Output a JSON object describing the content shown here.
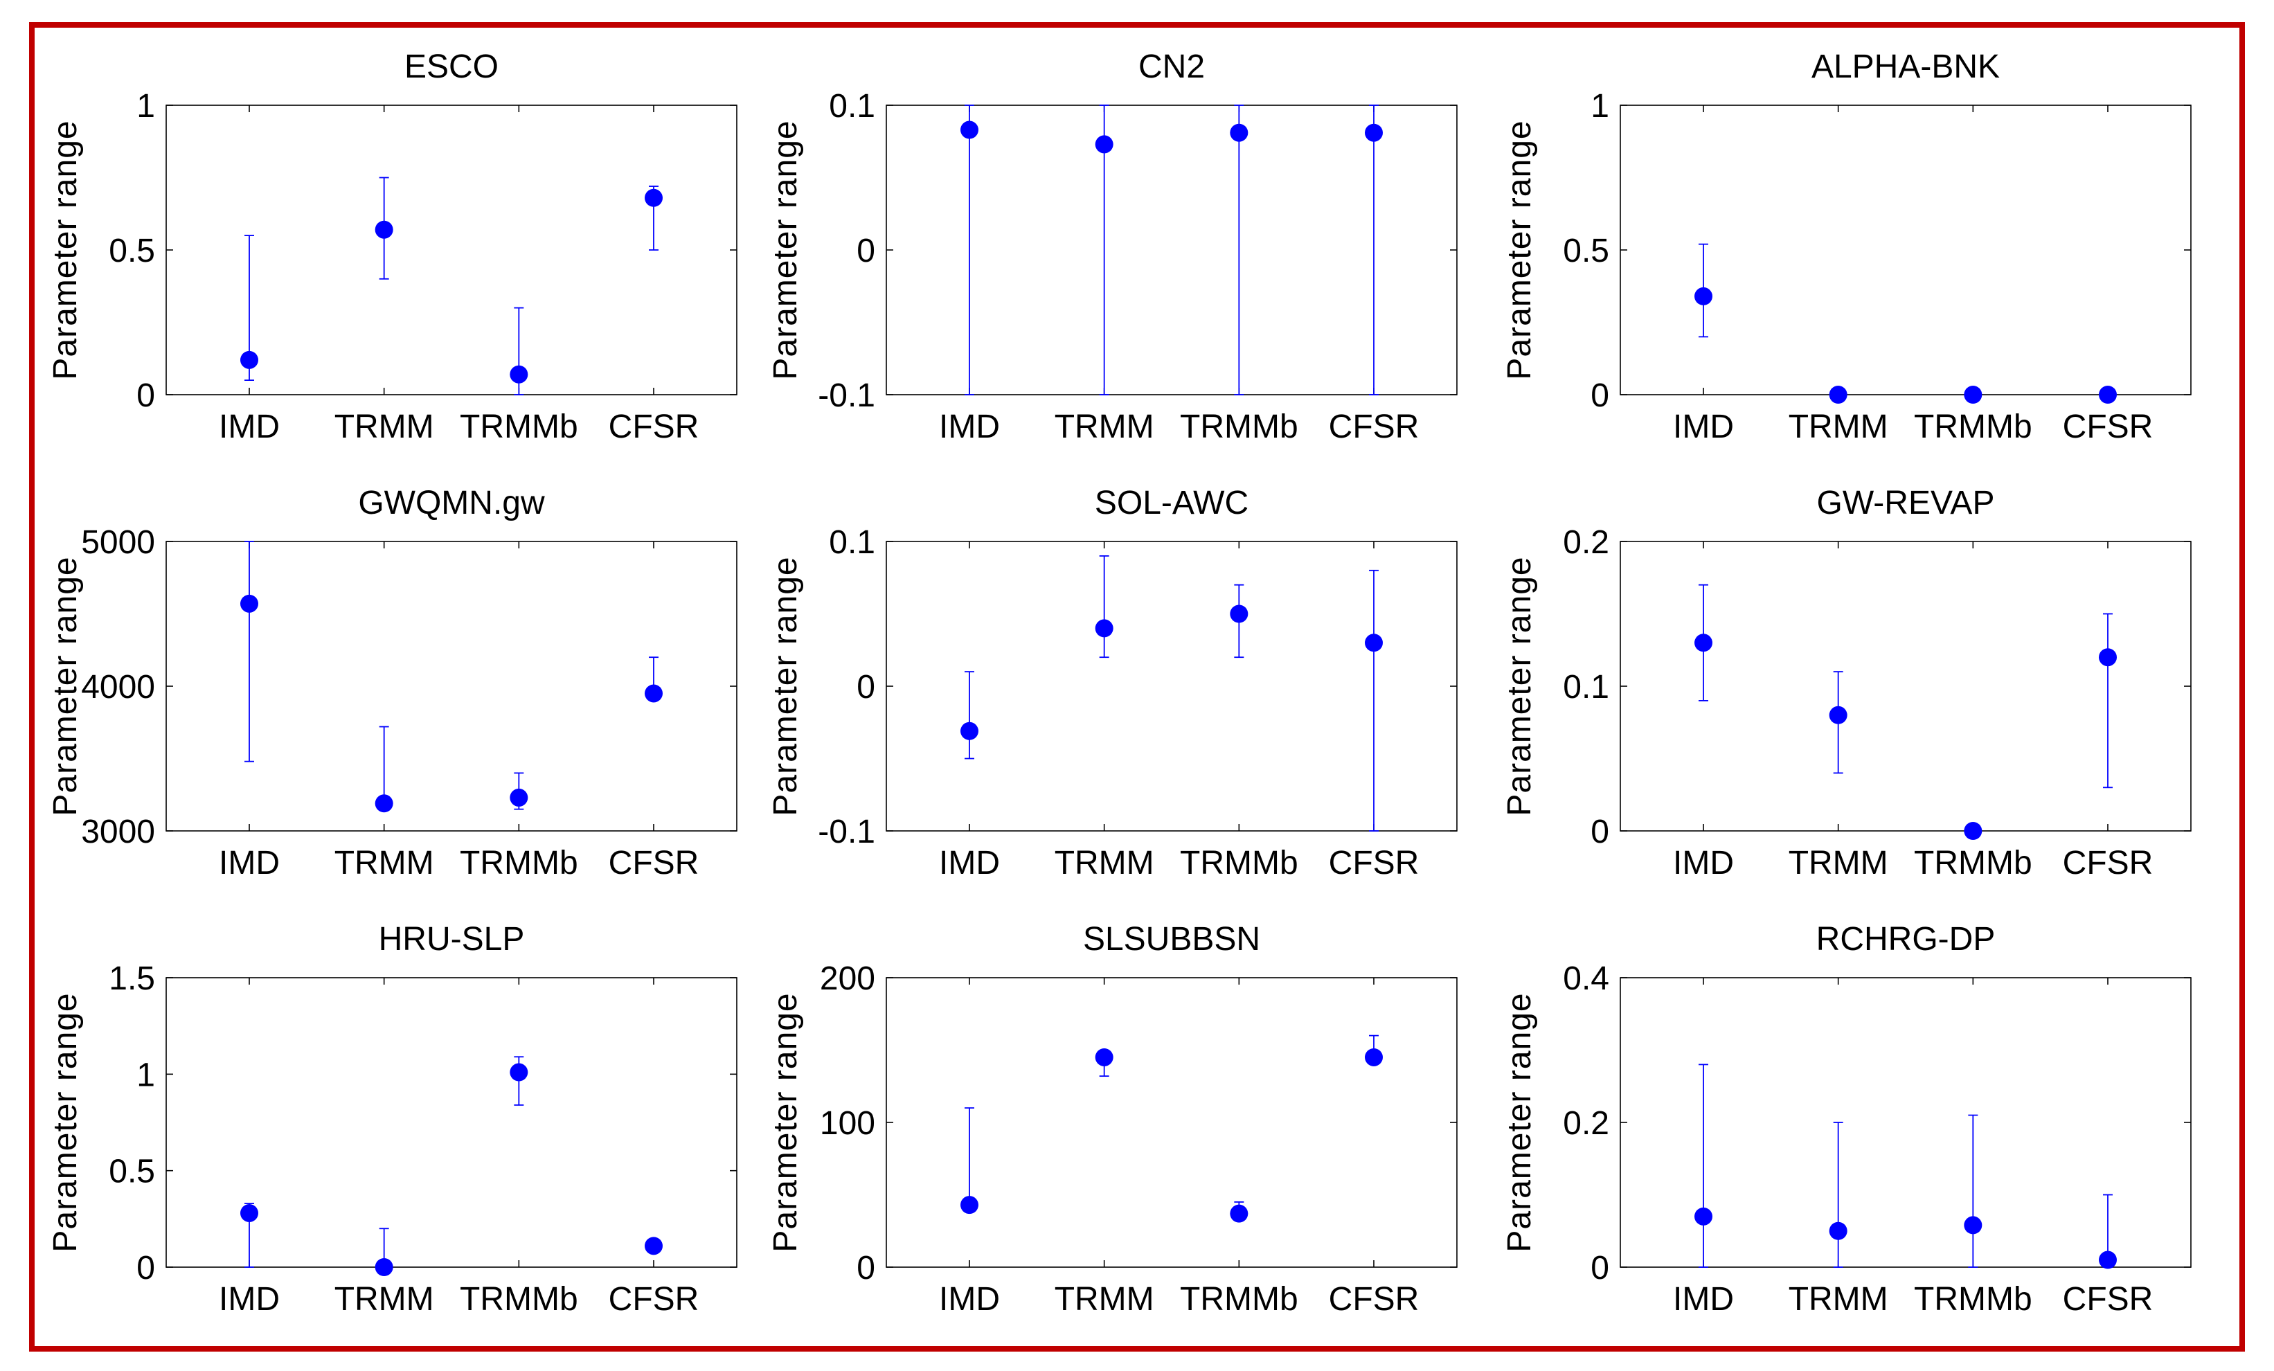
{
  "figure": {
    "y_axis_label": "Parameter range",
    "marker_color": "#0000ff",
    "errorbar_color": "#0000ff",
    "frame_color": "#c00000"
  },
  "chart_data": [
    {
      "type": "errorbar",
      "title": "ESCO",
      "categories": [
        "IMD",
        "TRMM",
        "TRMMb",
        "CFSR"
      ],
      "ylabel": "Parameter range",
      "ylim": [
        0,
        1
      ],
      "yticks": [
        0,
        0.5,
        1
      ],
      "ytick_labels": [
        "0",
        "0.5",
        "1"
      ],
      "values": [
        0.12,
        0.57,
        0.07,
        0.68
      ],
      "lower": [
        0.05,
        0.4,
        0.0,
        0.5
      ],
      "upper": [
        0.55,
        0.75,
        0.3,
        0.72
      ]
    },
    {
      "type": "errorbar",
      "title": "CN2",
      "categories": [
        "IMD",
        "TRMM",
        "TRMMb",
        "CFSR"
      ],
      "ylabel": "Parameter range",
      "ylim": [
        -0.1,
        0.1
      ],
      "yticks": [
        -0.1,
        0,
        0.1
      ],
      "ytick_labels": [
        "-0.1",
        "0",
        "0.1"
      ],
      "values": [
        0.083,
        0.073,
        0.081,
        0.081
      ],
      "lower": [
        -0.1,
        -0.1,
        -0.1,
        -0.1
      ],
      "upper": [
        0.1,
        0.1,
        0.1,
        0.1
      ]
    },
    {
      "type": "errorbar",
      "title": "ALPHA-BNK",
      "categories": [
        "IMD",
        "TRMM",
        "TRMMb",
        "CFSR"
      ],
      "ylabel": "Parameter range",
      "ylim": [
        0,
        1
      ],
      "yticks": [
        0,
        0.5,
        1
      ],
      "ytick_labels": [
        "0",
        "0.5",
        "1"
      ],
      "values": [
        0.34,
        0.0,
        0.0,
        0.0
      ],
      "lower": [
        0.2,
        0.0,
        0.0,
        0.0
      ],
      "upper": [
        0.52,
        0.0,
        0.0,
        0.0
      ]
    },
    {
      "type": "errorbar",
      "title": "GWQMN.gw",
      "categories": [
        "IMD",
        "TRMM",
        "TRMMb",
        "CFSR"
      ],
      "ylabel": "Parameter range",
      "ylim": [
        3000,
        5000
      ],
      "yticks": [
        3000,
        4000,
        5000
      ],
      "ytick_labels": [
        "3000",
        "4000",
        "5000"
      ],
      "values": [
        4570,
        3190,
        3230,
        3950
      ],
      "lower": [
        3480,
        3190,
        3150,
        3950
      ],
      "upper": [
        5000,
        3720,
        3400,
        4200
      ]
    },
    {
      "type": "errorbar",
      "title": "SOL-AWC",
      "categories": [
        "IMD",
        "TRMM",
        "TRMMb",
        "CFSR"
      ],
      "ylabel": "Parameter range",
      "ylim": [
        -0.1,
        0.1
      ],
      "yticks": [
        -0.1,
        0,
        0.1
      ],
      "ytick_labels": [
        "-0.1",
        "0",
        "0.1"
      ],
      "values": [
        -0.031,
        0.04,
        0.05,
        0.03
      ],
      "lower": [
        -0.05,
        0.02,
        0.02,
        -0.1
      ],
      "upper": [
        0.01,
        0.09,
        0.07,
        0.08
      ]
    },
    {
      "type": "errorbar",
      "title": "GW-REVAP",
      "categories": [
        "IMD",
        "TRMM",
        "TRMMb",
        "CFSR"
      ],
      "ylabel": "Parameter range",
      "ylim": [
        0,
        0.2
      ],
      "yticks": [
        0,
        0.1,
        0.2
      ],
      "ytick_labels": [
        "0",
        "0.1",
        "0.2"
      ],
      "values": [
        0.13,
        0.08,
        0.0,
        0.12
      ],
      "lower": [
        0.09,
        0.04,
        0.0,
        0.03
      ],
      "upper": [
        0.17,
        0.11,
        0.0,
        0.15
      ]
    },
    {
      "type": "errorbar",
      "title": "HRU-SLP",
      "categories": [
        "IMD",
        "TRMM",
        "TRMMb",
        "CFSR"
      ],
      "ylabel": "Parameter range",
      "ylim": [
        0,
        1.5
      ],
      "yticks": [
        0,
        0.5,
        1,
        1.5
      ],
      "ytick_labels": [
        "0",
        "0.5",
        "1",
        "1.5"
      ],
      "values": [
        0.28,
        0.0,
        1.01,
        0.11
      ],
      "lower": [
        0.0,
        0.0,
        0.84,
        0.11
      ],
      "upper": [
        0.33,
        0.2,
        1.09,
        0.11
      ]
    },
    {
      "type": "errorbar",
      "title": "SLSUBBSN",
      "categories": [
        "IMD",
        "TRMM",
        "TRMMb",
        "CFSR"
      ],
      "ylabel": "Parameter range",
      "ylim": [
        0,
        200
      ],
      "yticks": [
        0,
        100,
        200
      ],
      "ytick_labels": [
        "0",
        "100",
        "200"
      ],
      "values": [
        43,
        145,
        37,
        145
      ],
      "lower": [
        43,
        132,
        37,
        145
      ],
      "upper": [
        110,
        145,
        45,
        160
      ]
    },
    {
      "type": "errorbar",
      "title": "RCHRG-DP",
      "categories": [
        "IMD",
        "TRMM",
        "TRMMb",
        "CFSR"
      ],
      "ylabel": "Parameter range",
      "ylim": [
        0,
        0.4
      ],
      "yticks": [
        0,
        0.2,
        0.4
      ],
      "ytick_labels": [
        "0",
        "0.2",
        "0.4"
      ],
      "values": [
        0.07,
        0.05,
        0.058,
        0.01
      ],
      "lower": [
        0.0,
        0.0,
        0.0,
        0.0
      ],
      "upper": [
        0.28,
        0.2,
        0.21,
        0.1
      ]
    }
  ]
}
